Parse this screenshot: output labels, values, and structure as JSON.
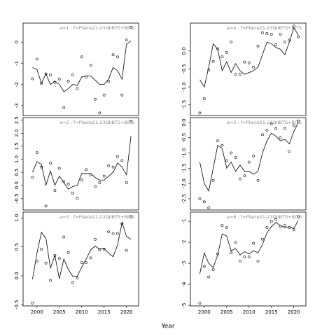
{
  "chart_data": [
    {
      "type": "line",
      "title": "a=1 ;  f=Plaice21-23QIIBTS+BITS",
      "x": [
        1999,
        2000,
        2001,
        2002,
        2003,
        2004,
        2005,
        2006,
        2007,
        2008,
        2009,
        2010,
        2011,
        2012,
        2013,
        2014,
        2015,
        2016,
        2017,
        2018,
        2019,
        2020,
        2021
      ],
      "series": [
        {
          "style": "points",
          "color": "#000000",
          "values": [
            -1.73,
            -0.8,
            -1.95,
            -1.5,
            -1.55,
            -1.9,
            -1.75,
            -3.1,
            -1.85,
            -1.55,
            -2.2,
            -0.7,
            -1.65,
            -1.1,
            -2.7,
            -3.35,
            -2.5,
            -1.85,
            -0.6,
            -0.7,
            -2.5,
            0.1,
            0.7
          ]
        },
        {
          "style": "line",
          "color": "#000000",
          "values": [
            -1.2,
            -1.3,
            -1.95,
            -1.5,
            -2.0,
            -1.85,
            -2.0,
            -2.35,
            -2.2,
            -2.0,
            -2.05,
            -1.65,
            -1.6,
            -1.6,
            -1.8,
            -2.0,
            -2.0,
            -1.75,
            -1.2,
            -1.35,
            -1.75,
            -0.1,
            0.05
          ]
        }
      ],
      "xlim": [
        1996.9,
        2022.7
      ],
      "ylim": [
        -3.47,
        0.9
      ],
      "yticks": [
        0,
        -1,
        -2,
        -3
      ]
    },
    {
      "type": "line",
      "title": "a=2 ;  f=Plaice21-23QIIBTS+BITS",
      "x": [
        1999,
        2000,
        2001,
        2002,
        2003,
        2004,
        2005,
        2006,
        2007,
        2008,
        2009,
        2010,
        2011,
        2012,
        2013,
        2014,
        2015,
        2016,
        2017,
        2018,
        2019,
        2020,
        2021
      ],
      "series": [
        {
          "style": "points",
          "color": "#000000",
          "values": [
            0.3,
            1.25,
            0.7,
            -0.8,
            0.85,
            -0.2,
            0.65,
            0.15,
            0.05,
            -0.3,
            -0.5,
            0.2,
            0.6,
            0.4,
            -0.05,
            0.1,
            0.35,
            0.75,
            0.7,
            1.1,
            0.95,
            0.1,
            2.45
          ]
        },
        {
          "style": "line",
          "color": "#000000",
          "values": [
            0.5,
            0.9,
            0.8,
            0.0,
            0.55,
            0.0,
            0.35,
            0.1,
            -0.15,
            -0.05,
            0.0,
            0.45,
            0.45,
            0.45,
            0.3,
            0.2,
            0.2,
            0.35,
            0.5,
            0.85,
            0.7,
            0.4,
            1.9
          ]
        }
      ],
      "xlim": [
        1996.9,
        2022.7
      ],
      "ylim": [
        -0.95,
        2.6
      ],
      "yticks": [
        2.5,
        {
          "value": 2,
          "label": "2.0"
        },
        1.5,
        {
          "value": 1,
          "label": "1.0"
        },
        0.5,
        {
          "value": 0,
          "label": "0.0"
        },
        -0.5
      ]
    },
    {
      "type": "line",
      "title": "a=3 ;  f=Plaice21-23QIIBTS+BITS",
      "x": [
        1999,
        2000,
        2001,
        2002,
        2003,
        2004,
        2005,
        2006,
        2007,
        2008,
        2009,
        2010,
        2011,
        2012,
        2013,
        2014,
        2015,
        2016,
        2017,
        2018,
        2019,
        2020,
        2021
      ],
      "series": [
        {
          "style": "points",
          "color": "#000000",
          "values": [
            -0.47,
            0.25,
            0.46,
            0.22,
            -0.08,
            0.35,
            0.3,
            0.67,
            0.4,
            -0.12,
            -0.04,
            0.23,
            0.23,
            0.31,
            0.63,
            0.45,
            0.46,
            0.76,
            0.73,
            0.73,
            0.9,
            0.44,
            1.02
          ]
        },
        {
          "style": "line",
          "color": "#000000",
          "values": [
            -0.06,
            0.39,
            0.75,
            0.65,
            0.13,
            0.35,
            -0.05,
            0.29,
            0.11,
            -0.01,
            -0.01,
            0.15,
            0.29,
            0.45,
            0.51,
            0.46,
            0.47,
            0.39,
            0.33,
            0.53,
            0.92,
            0.68,
            0.63
          ]
        }
      ],
      "xlim": [
        1996.9,
        2022.7
      ],
      "ylim": [
        -0.52,
        1.1
      ],
      "yticks": [
        {
          "value": 1,
          "label": "1.0"
        },
        0.5,
        {
          "value": 0,
          "label": "0.0"
        },
        -0.5
      ],
      "xticks": [
        2000,
        2005,
        2010,
        2015,
        2020
      ],
      "xlabel": "Year"
    },
    {
      "type": "line",
      "title": "a=4 ;  f=Plaice21-23QIIBTS+BITS",
      "x": [
        1999,
        2000,
        2001,
        2002,
        2003,
        2004,
        2005,
        2006,
        2007,
        2008,
        2009,
        2010,
        2011,
        2012,
        2013,
        2014,
        2015,
        2016,
        2017,
        2018,
        2019,
        2020,
        2021
      ],
      "series": [
        {
          "style": "points",
          "color": "#000000",
          "values": [
            -1.73,
            -1.33,
            -0.53,
            -0.29,
            0.06,
            -0.16,
            -0.04,
            0.25,
            -0.65,
            -0.65,
            -0.31,
            -0.33,
            -0.45,
            0.14,
            0.51,
            0.49,
            0.47,
            0.18,
            0.47,
            0.25,
            0.3,
            0.7,
            0.4
          ]
        },
        {
          "style": "line",
          "color": "#000000",
          "values": [
            -0.8,
            -1.0,
            -0.45,
            0.2,
            0.05,
            -0.55,
            -0.3,
            -0.6,
            -0.35,
            -0.55,
            -0.65,
            -0.6,
            -0.55,
            -0.45,
            -0.1,
            0.25,
            0.2,
            0.1,
            0.05,
            -0.1,
            0.25,
            0.65,
            0.45
          ]
        }
      ],
      "xlim": [
        1996.9,
        2022.7
      ],
      "ylim": [
        -1.8,
        0.78
      ],
      "yticks": [
        {
          "value": 0,
          "label": "0.0"
        },
        -0.5,
        {
          "value": -1,
          "label": "-1.0"
        },
        -1.5
      ]
    },
    {
      "type": "line",
      "title": "a=5 ;  f=Plaice21-23QIIBTS+BITS",
      "x": [
        1999,
        2000,
        2001,
        2002,
        2003,
        2004,
        2005,
        2006,
        2007,
        2008,
        2009,
        2010,
        2011,
        2012,
        2013,
        2014,
        2015,
        2016,
        2017,
        2018,
        2019,
        2020,
        2021
      ],
      "series": [
        {
          "style": "points",
          "color": "#000000",
          "values": [
            -2.5,
            -2.6,
            -2.8,
            -1.9,
            -0.6,
            -0.75,
            -1.25,
            -1.0,
            -1.15,
            -1.85,
            -1.75,
            -1.3,
            -1.1,
            -1.9,
            -0.4,
            -0.25,
            -0.05,
            -0.2,
            -0.5,
            -0.2,
            -0.95,
            -0.1,
            0.05
          ]
        },
        {
          "style": "line",
          "color": "#000000",
          "values": [
            -1.3,
            -2.0,
            -2.25,
            -1.5,
            -0.75,
            -0.85,
            -1.5,
            -1.3,
            -1.6,
            -1.4,
            -1.6,
            -1.6,
            -1.7,
            -1.6,
            -1.0,
            -0.6,
            -0.35,
            -0.45,
            -0.6,
            -0.55,
            -0.7,
            -0.3,
            0.0
          ]
        }
      ],
      "xlim": [
        1996.9,
        2022.7
      ],
      "ylim": [
        -2.87,
        0.16
      ],
      "yticks": [
        {
          "value": 0,
          "label": "0.0"
        },
        -0.5,
        {
          "value": -1,
          "label": "-1.0"
        },
        -1.5,
        {
          "value": -2,
          "label": "-2.0"
        },
        -2.5
      ]
    },
    {
      "type": "line",
      "title": "a=6 ;  f=Plaice21-23QIIBTS+BITS",
      "x": [
        1999,
        2000,
        2001,
        2002,
        2003,
        2004,
        2005,
        2006,
        2007,
        2008,
        2009,
        2010,
        2011,
        2012,
        2013,
        2014,
        2015,
        2016,
        2017,
        2018,
        2019,
        2020,
        2021
      ],
      "series": [
        {
          "style": "points",
          "color": "#000000",
          "values": [
            -4.9,
            -3.15,
            -3.65,
            -3.3,
            -2.55,
            -1.2,
            -1.3,
            -2.5,
            -2.0,
            -2.9,
            -2.7,
            -2.7,
            -2.05,
            -2.9,
            -1.85,
            -1.3,
            -1.0,
            -0.9,
            -1.25,
            -1.2,
            -1.3,
            -1.4,
            -0.8
          ]
        },
        {
          "style": "line",
          "color": "#000000",
          "values": [
            -3.5,
            -2.5,
            -3.0,
            -3.2,
            -2.6,
            -1.6,
            -1.7,
            -2.4,
            -2.3,
            -2.6,
            -2.45,
            -2.55,
            -2.4,
            -2.5,
            -2.1,
            -1.55,
            -1.25,
            -1.05,
            -1.2,
            -1.3,
            -1.25,
            -1.35,
            -0.95
          ]
        }
      ],
      "xlim": [
        1996.9,
        2022.7
      ],
      "ylim": [
        -5.03,
        -0.56
      ],
      "yticks": [
        -1,
        -2,
        -3,
        -4,
        -5
      ],
      "xticks": [
        2000,
        2005,
        2010,
        2015,
        2020
      ]
    }
  ]
}
